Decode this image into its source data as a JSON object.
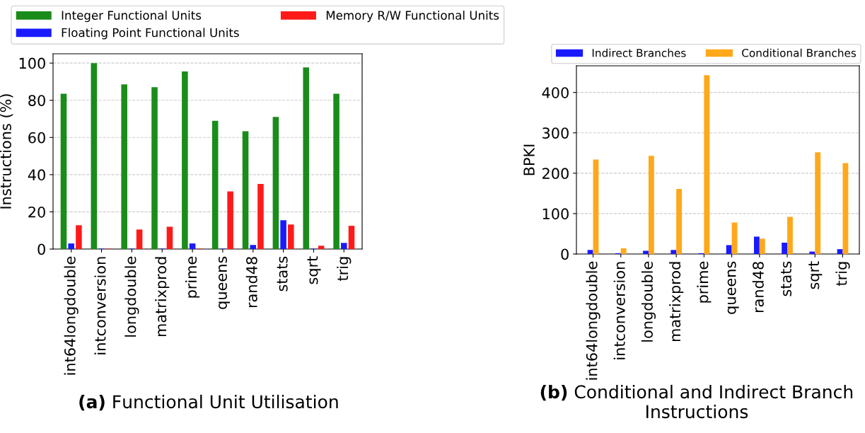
{
  "chart_data": [
    {
      "type": "bar",
      "title": "(a) Functional Unit Utilisation",
      "ylabel": "Instructions (%)",
      "categories": [
        "int64longdouble",
        "intconversion",
        "longdouble",
        "matrixprod",
        "prime",
        "queens",
        "rand48",
        "stats",
        "sqrt",
        "trig"
      ],
      "series": [
        {
          "name": "Integer Functional Units",
          "color": "#1a8c1a",
          "values": [
            83.5,
            100,
            88.5,
            87,
            95.5,
            69,
            63.3,
            71,
            97.7,
            83.5
          ]
        },
        {
          "name": "Floating Point Functional Units",
          "color": "#1a1aff",
          "values": [
            3,
            0.2,
            0.2,
            0.2,
            3,
            0.2,
            2.2,
            15.5,
            0.2,
            3.3
          ]
        },
        {
          "name": "Memory R/W Functional Units",
          "color": "#ff1a1a",
          "values": [
            12.8,
            0.2,
            10.5,
            12,
            0.2,
            31,
            35,
            13.2,
            1.8,
            12.5
          ]
        }
      ],
      "ylim": [
        0,
        105
      ],
      "yticks": [
        0,
        20,
        40,
        60,
        80,
        100
      ],
      "grid": "y",
      "legend": "top"
    },
    {
      "type": "bar",
      "title": "(b) Conditional and Indirect Branch Instructions",
      "ylabel": "BPKI",
      "categories": [
        "int64longdouble",
        "intconversion",
        "longdouble",
        "matrixprod",
        "prime",
        "queens",
        "rand48",
        "stats",
        "sqrt",
        "trig"
      ],
      "series": [
        {
          "name": "Indirect Branches",
          "color": "#1a1aff",
          "values": [
            10,
            2,
            8,
            10,
            2,
            22,
            43,
            28,
            6,
            12
          ]
        },
        {
          "name": "Conditional Branches",
          "color": "#ffa81a",
          "values": [
            234,
            14,
            243,
            161,
            443,
            78,
            38,
            92,
            252,
            225
          ]
        }
      ],
      "ylim": [
        0,
        466
      ],
      "yticks": [
        0,
        100,
        200,
        300,
        400
      ],
      "grid": "y",
      "legend": "top"
    }
  ]
}
